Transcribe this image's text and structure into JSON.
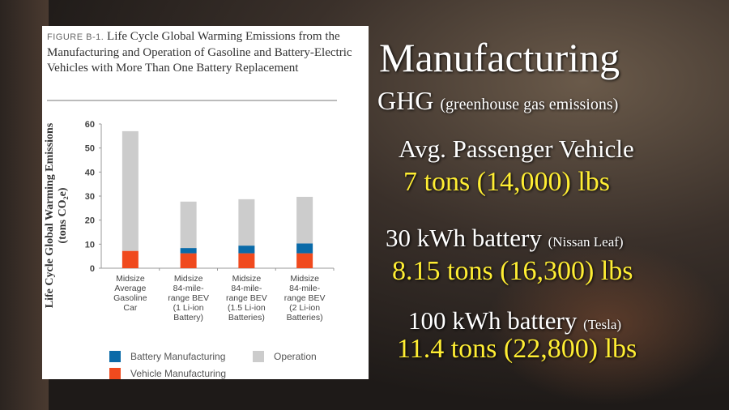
{
  "chart_data": {
    "type": "bar",
    "stacked": true,
    "figure_label": "FIGURE B-1.",
    "title": "Life Cycle Global Warming Emissions from the Manufacturing and Operation of Gasoline and Battery-Electric Vehicles with More Than One Battery Replacement",
    "ylabel": "Life Cycle Global Warming Emissions",
    "ylabel_unit": "(tons CO₂e)",
    "ylim": [
      0,
      60
    ],
    "yticks": [
      0,
      10,
      20,
      30,
      40,
      50,
      60
    ],
    "categories": [
      "Midsize\nAverage\nGasoline\nCar",
      "Midsize\n84-mile-\nrange BEV\n(1 Li-ion\nBattery)",
      "Midsize\n84-mile-\nrange BEV\n(1.5 Li-ion\nBatteries)",
      "Midsize\n84-mile-\nrange BEV\n(2 Li-ion\nBatteries)"
    ],
    "series": [
      {
        "name": "Vehicle Manufacturing",
        "color": "#f04a1e",
        "values": [
          7.2,
          6.2,
          6.2,
          6.2
        ]
      },
      {
        "name": "Battery Manufacturing",
        "color": "#0a6aa8",
        "values": [
          0,
          2.2,
          3.2,
          4.1
        ]
      },
      {
        "name": "Operation",
        "color": "#cccccc",
        "values": [
          49.8,
          19.3,
          19.3,
          19.4
        ]
      }
    ],
    "legend_position": "bottom",
    "grid": false
  },
  "overlay": {
    "heading": "Manufacturing",
    "ghg": "GHG",
    "ghg_note": "(greenhouse gas emissions)",
    "items": [
      {
        "label": "Avg. Passenger Vehicle",
        "note": "",
        "value": "7 tons (14,000) lbs"
      },
      {
        "label": "30 kWh battery",
        "note": "(Nissan Leaf)",
        "value": "8.15 tons (16,300) lbs"
      },
      {
        "label": "100 kWh battery",
        "note": "(Tesla)",
        "value": "11.4 tons (22,800) lbs"
      }
    ]
  }
}
